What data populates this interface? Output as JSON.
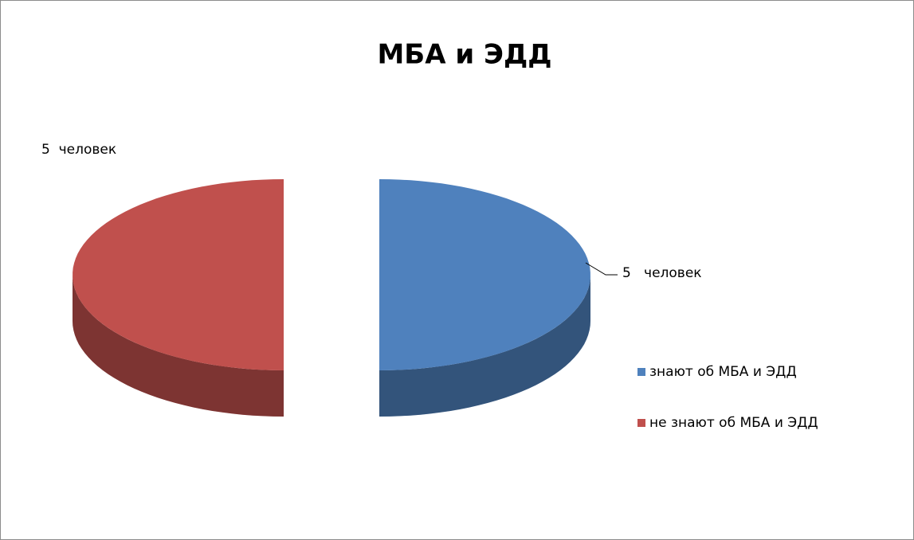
{
  "chart_data": {
    "type": "pie",
    "title": "МБА и ЭДД",
    "categories": [
      "знают об МБА и ЭДД",
      "не знают об МБА и ЭДД"
    ],
    "values": [
      5,
      5
    ],
    "value_labels": [
      "5   человек",
      "5  человек"
    ],
    "colors": [
      "#4f81bd",
      "#c0504d"
    ],
    "legend": "right"
  }
}
